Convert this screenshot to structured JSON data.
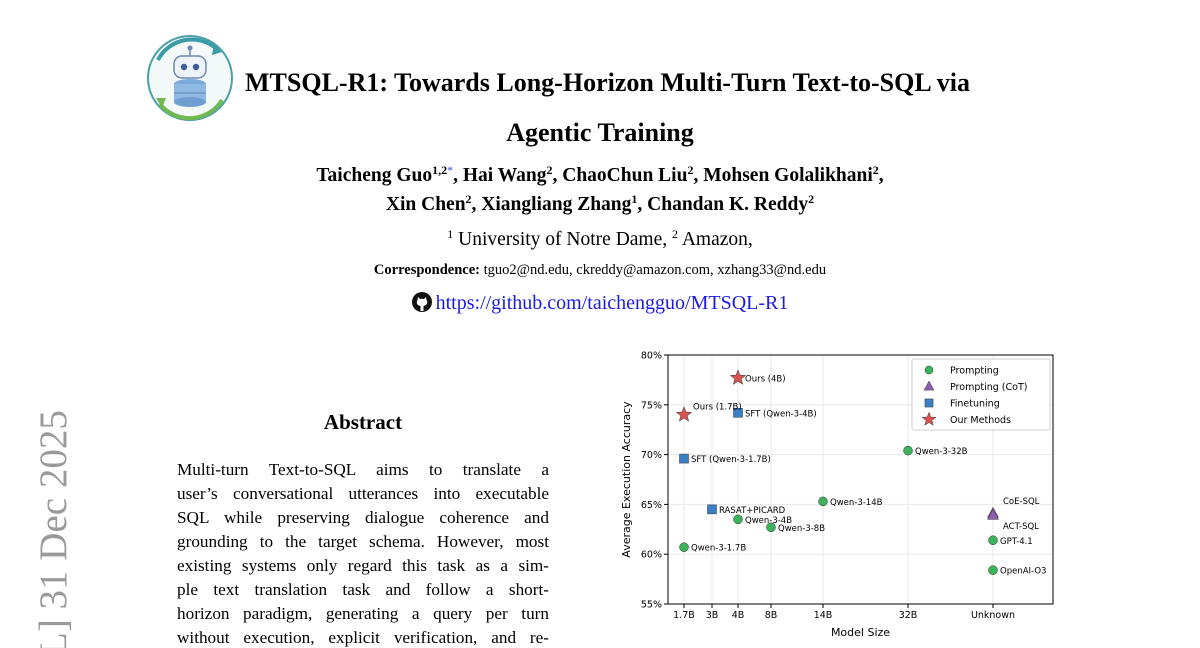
{
  "arxiv_stamp": "L] 31 Dec 2025",
  "title_lines": [
    "MTSQL-R1: Towards Long-Horizon Multi-Turn Text-to-SQL via",
    "Agentic Training"
  ],
  "authors": [
    {
      "name": "Taicheng Guo",
      "sup": "1,2",
      "mark": "*",
      "sep": ","
    },
    {
      "name": "Hai Wang",
      "sup": "2",
      "sep": ","
    },
    {
      "name": "ChaoChun Liu",
      "sup": "2",
      "sep": ","
    },
    {
      "name": "Mohsen Golalikhani",
      "sup": "2",
      "sep": ","
    },
    {
      "name": "Xin Chen",
      "sup": "2",
      "sep": ","
    },
    {
      "name": "Xiangliang Zhang",
      "sup": "1",
      "sep": ","
    },
    {
      "name": "Chandan K. Reddy",
      "sup": "2"
    }
  ],
  "affiliations": [
    {
      "sup": "1",
      "name": "University of Notre Dame,"
    },
    {
      "sup": "2",
      "name": "Amazon,"
    }
  ],
  "correspondence": {
    "label": "Correspondence:",
    "emails": "tguo2@nd.edu, ckreddy@amazon.com, xzhang33@nd.edu"
  },
  "github": "https://github.com/taichengguo/MTSQL-R1",
  "abstract": {
    "heading": "Abstract",
    "lines": [
      "Multi-turn Text-to-SQL aims to translate a",
      "user’s conversational utterances into executable",
      "SQL while preserving dialogue coherence and",
      "grounding to the target schema. However, most",
      "existing systems only regard this task as a sim-",
      "ple text translation task and follow a short-",
      "horizon paradigm, generating a query per turn",
      "without execution, explicit verification, and re-"
    ]
  },
  "chart_data": {
    "type": "scatter",
    "xlabel": "Model Size",
    "ylabel": "Average Execution Accuracy",
    "categories": [
      "1.7B",
      "3B",
      "4B",
      "8B",
      "14B",
      "32B",
      "Unknown"
    ],
    "ylim": [
      55,
      80
    ],
    "yticks": [
      {
        "value": 55,
        "label": "55%"
      },
      {
        "value": 60,
        "label": "60%"
      },
      {
        "value": 65,
        "label": "65%"
      },
      {
        "value": 70,
        "label": "70%"
      },
      {
        "value": 75,
        "label": "75%"
      },
      {
        "value": 80,
        "label": "80%"
      }
    ],
    "grid": true,
    "legend": "upper right",
    "series": [
      {
        "name": "Prompting",
        "marker": "circle",
        "color": "#3cb35a",
        "x": [
          "1.7B",
          "4B",
          "8B",
          "14B",
          "32B",
          "Unknown",
          "Unknown"
        ],
        "values": [
          60.7,
          63.5,
          62.7,
          65.3,
          70.4,
          61.4,
          58.4
        ],
        "labels": [
          "Qwen-3-1.7B",
          "Qwen-3-4B",
          "Qwen-3-8B",
          "Qwen-3-14B",
          "Qwen-3-32B",
          "GPT-4.1",
          "OpenAI-O3"
        ]
      },
      {
        "name": "Prompting (CoT)",
        "marker": "triangle",
        "color": "#8d5fb3",
        "x": [
          "Unknown",
          "Unknown"
        ],
        "values": [
          64.1,
          63.9
        ],
        "labels": [
          "CoE-SQL",
          "ACT-SQL"
        ]
      },
      {
        "name": "Finetuning",
        "marker": "square",
        "color": "#3a80c6",
        "x": [
          "4B",
          "1.7B",
          "3B"
        ],
        "values": [
          74.2,
          69.6,
          64.5
        ],
        "labels": [
          "SFT (Qwen-3-4B)",
          "SFT (Qwen-3-1.7B)",
          "RASAT+PICARD"
        ]
      },
      {
        "name": "Our Methods",
        "marker": "star",
        "color": "#d9534f",
        "x": [
          "4B",
          "1.7B"
        ],
        "values": [
          77.7,
          74.0
        ],
        "labels": [
          "Ours (4B)",
          "Ours (1.7B)"
        ]
      }
    ]
  }
}
